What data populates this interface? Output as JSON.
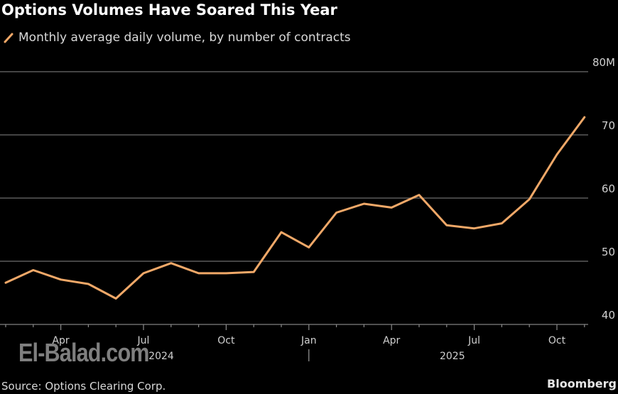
{
  "header": {
    "title": "Options Volumes Have Soared This Year",
    "legend_label": "Monthly average daily volume, by number of contracts",
    "legend_icon": "line-swatch-icon"
  },
  "footer": {
    "source": "Source: Options Clearing Corp.",
    "brand": "Bloomberg",
    "watermark": "El-Balad.com"
  },
  "colors": {
    "background": "#000000",
    "line": "#f0a868",
    "gridline": "#5a5a5a",
    "text": "#d0d0d0"
  },
  "chart_data": {
    "type": "line",
    "title": "Options Volumes Have Soared This Year",
    "subtitle": "Monthly average daily volume, by number of contracts",
    "xlabel": "",
    "ylabel": "",
    "ylim": [
      40,
      80
    ],
    "y_unit": "M",
    "y_ticks": [
      "40",
      "50",
      "60",
      "70",
      "80M"
    ],
    "y_axis_position": "right",
    "grid": true,
    "legend_position": "top-left",
    "x_tick_labels": [
      "Apr",
      "Jul",
      "Oct",
      "Jan",
      "Apr",
      "Jul",
      "Oct"
    ],
    "x_year_labels": [
      "2024",
      "2025"
    ],
    "x": [
      "2024-02",
      "2024-03",
      "2024-04",
      "2024-05",
      "2024-06",
      "2024-07",
      "2024-08",
      "2024-09",
      "2024-10",
      "2024-11",
      "2024-12",
      "2025-01",
      "2025-02",
      "2025-03",
      "2025-04",
      "2025-05",
      "2025-06",
      "2025-07",
      "2025-08",
      "2025-09",
      "2025-10",
      "2025-11"
    ],
    "series": [
      {
        "name": "Monthly average daily volume, by number of contracts",
        "values": [
          46.6,
          48.6,
          47.1,
          46.4,
          44.1,
          48.1,
          49.7,
          48.1,
          48.1,
          48.3,
          54.6,
          52.2,
          57.7,
          59.1,
          58.5,
          60.5,
          55.7,
          55.2,
          56.0,
          59.8,
          66.9,
          72.8
        ]
      }
    ],
    "source": "Source: Options Clearing Corp."
  }
}
